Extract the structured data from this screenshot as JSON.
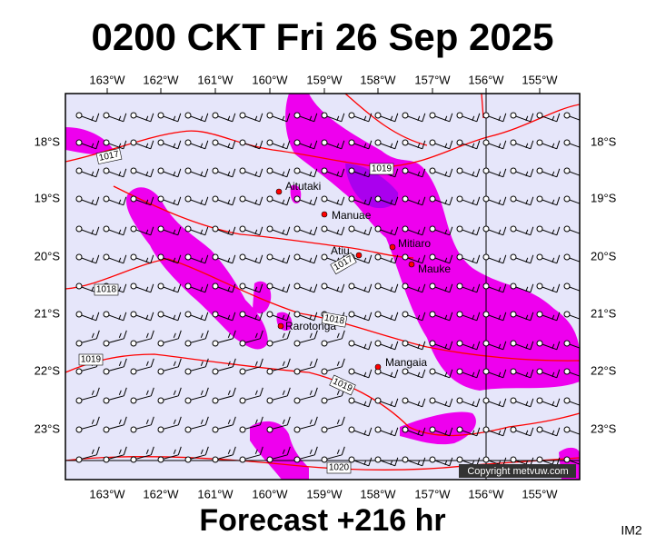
{
  "header": {
    "title": "0200 CKT Fri 26 Sep 2025"
  },
  "map": {
    "longitudes": [
      "163°W",
      "162°W",
      "161°W",
      "160°W",
      "159°W",
      "158°W",
      "157°W",
      "156°W",
      "155°W"
    ],
    "latitudes": [
      "18°S",
      "19°S",
      "20°S",
      "21°S",
      "22°S",
      "23°S"
    ],
    "places": [
      "Aitutaki",
      "Manuae",
      "Atiu",
      "Mitiaro",
      "Mauke",
      "Rarotonga",
      "Mangaia"
    ],
    "isobars": [
      "1017",
      "1019",
      "1017",
      "1018",
      "1018",
      "1019",
      "1019",
      "1020"
    ],
    "copyright": "Copyright metvuw.com"
  },
  "footer": {
    "forecast": "Forecast +216 hr",
    "code": "IM2"
  }
}
